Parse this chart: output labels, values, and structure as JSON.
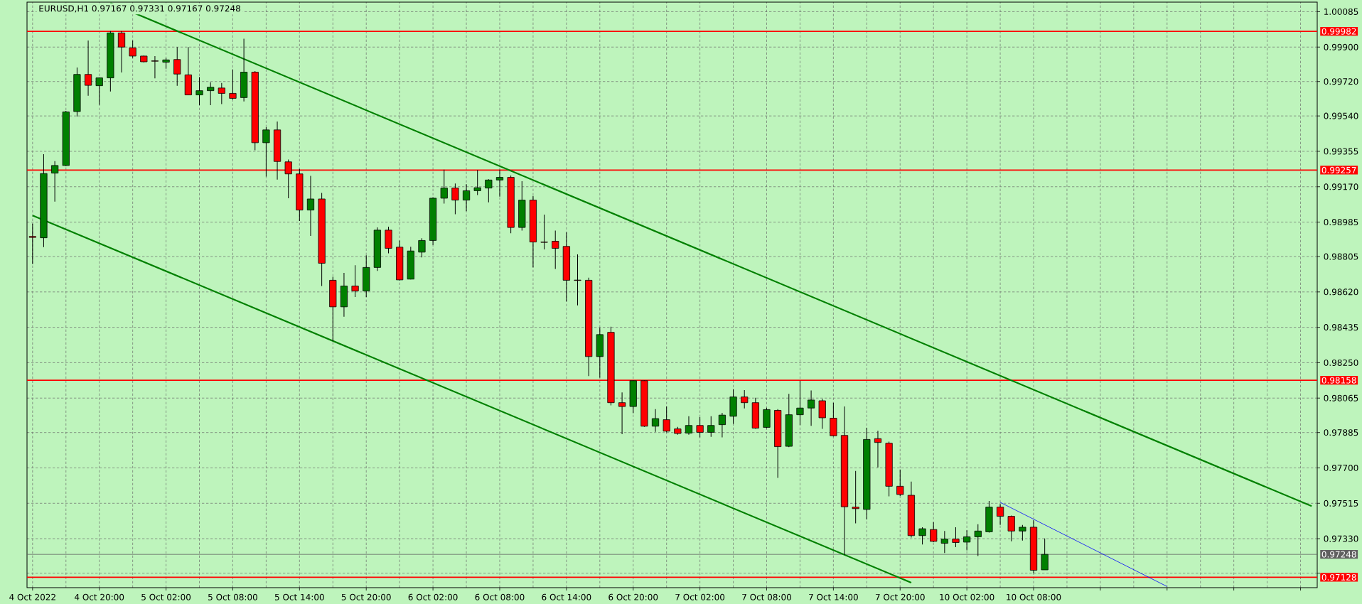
{
  "chart_data": {
    "type": "candlestick",
    "title": "EURUSD,H1  0.97167 0.97331 0.97167 0.97248",
    "categories": [
      "4 Oct 2022",
      null,
      null,
      null,
      null,
      null,
      "4 Oct 20:00",
      null,
      null,
      null,
      null,
      null,
      "5 Oct 02:00",
      null,
      null,
      null,
      null,
      null,
      "5 Oct 08:00",
      null,
      null,
      null,
      null,
      null,
      "5 Oct 14:00",
      null,
      null,
      null,
      null,
      null,
      "5 Oct 20:00",
      null,
      null,
      null,
      null,
      null,
      "6 Oct 02:00",
      null,
      null,
      null,
      null,
      null,
      "6 Oct 08:00",
      null,
      null,
      null,
      null,
      null,
      "6 Oct 14:00",
      null,
      null,
      null,
      null,
      null,
      "6 Oct 20:00",
      null,
      null,
      null,
      null,
      null,
      "7 Oct 02:00",
      null,
      null,
      null,
      null,
      null,
      "7 Oct 08:00",
      null,
      null,
      null,
      null,
      null,
      "7 Oct 14:00",
      null,
      null,
      null,
      null,
      null,
      "7 Oct 20:00",
      null,
      null,
      null,
      null,
      null,
      "10 Oct 02:00",
      null,
      null,
      null,
      null,
      null,
      "10 Oct 08:00",
      null,
      null,
      null,
      null,
      null,
      null,
      null,
      null,
      null,
      null,
      null,
      null,
      null,
      null,
      null,
      null,
      null,
      null,
      null,
      null,
      null,
      null,
      null,
      null,
      null
    ],
    "ohlc": [
      [
        0.9891,
        0.98977,
        0.98766,
        0.98905
      ],
      [
        0.98903,
        0.9934,
        0.98854,
        0.99239
      ],
      [
        0.99241,
        0.99304,
        0.99092,
        0.99281
      ],
      [
        0.99281,
        0.99567,
        0.99278,
        0.99561
      ],
      [
        0.99563,
        0.99793,
        0.99537,
        0.99757
      ],
      [
        0.99757,
        0.99934,
        0.99646,
        0.997
      ],
      [
        0.99698,
        0.99741,
        0.99598,
        0.99739
      ],
      [
        0.99739,
        0.99984,
        0.99668,
        0.99974
      ],
      [
        0.99974,
        0.99984,
        0.99767,
        0.999
      ],
      [
        0.99896,
        0.99934,
        0.99843,
        0.99853
      ],
      [
        0.99853,
        0.99855,
        0.9982,
        0.99823
      ],
      [
        0.99828,
        0.99853,
        0.99737,
        0.99826
      ],
      [
        0.99821,
        0.99843,
        0.99787,
        0.99833
      ],
      [
        0.99835,
        0.999,
        0.99698,
        0.99759
      ],
      [
        0.99755,
        0.999,
        0.99648,
        0.9965
      ],
      [
        0.9965,
        0.99743,
        0.99596,
        0.99672
      ],
      [
        0.99672,
        0.99716,
        0.99596,
        0.9969
      ],
      [
        0.99686,
        0.99712,
        0.99602,
        0.99658
      ],
      [
        0.99658,
        0.99783,
        0.99626,
        0.99632
      ],
      [
        0.99636,
        0.99944,
        0.99616,
        0.99769
      ],
      [
        0.99769,
        0.99775,
        0.9936,
        0.994
      ],
      [
        0.994,
        0.99481,
        0.99223,
        0.99467
      ],
      [
        0.99467,
        0.99511,
        0.99207,
        0.99302
      ],
      [
        0.993,
        0.99312,
        0.9911,
        0.99237
      ],
      [
        0.99237,
        0.99263,
        0.98991,
        0.99048
      ],
      [
        0.99048,
        0.99227,
        0.98913,
        0.99106
      ],
      [
        0.99106,
        0.99138,
        0.98651,
        0.9877
      ],
      [
        0.98681,
        0.98699,
        0.98363,
        0.98542
      ],
      [
        0.98542,
        0.9872,
        0.9849,
        0.98651
      ],
      [
        0.98651,
        0.9876,
        0.98593,
        0.98625
      ],
      [
        0.98625,
        0.98812,
        0.98593,
        0.98748
      ],
      [
        0.98748,
        0.98957,
        0.9873,
        0.98943
      ],
      [
        0.98943,
        0.98961,
        0.98822,
        0.98848
      ],
      [
        0.98854,
        0.98889,
        0.98681,
        0.98683
      ],
      [
        0.98687,
        0.98856,
        0.98685,
        0.98834
      ],
      [
        0.98828,
        0.98901,
        0.988,
        0.98889
      ],
      [
        0.98889,
        0.99114,
        0.98865,
        0.9911
      ],
      [
        0.9911,
        0.99259,
        0.99082,
        0.99163
      ],
      [
        0.99163,
        0.99187,
        0.99026,
        0.991
      ],
      [
        0.991,
        0.99183,
        0.99042,
        0.99149
      ],
      [
        0.99149,
        0.99257,
        0.99126,
        0.99165
      ],
      [
        0.99163,
        0.99209,
        0.99088,
        0.99205
      ],
      [
        0.99205,
        0.99259,
        0.99118,
        0.99219
      ],
      [
        0.99219,
        0.99229,
        0.98927,
        0.98957
      ],
      [
        0.98957,
        0.99199,
        0.98941,
        0.991
      ],
      [
        0.991,
        0.99122,
        0.98748,
        0.98881
      ],
      [
        0.98881,
        0.99024,
        0.98842,
        0.98879
      ],
      [
        0.98885,
        0.98941,
        0.9874,
        0.98848
      ],
      [
        0.98858,
        0.98931,
        0.9857,
        0.98681
      ],
      [
        0.98682,
        0.98816,
        0.9855,
        0.9868
      ],
      [
        0.98681,
        0.98695,
        0.9818,
        0.98282
      ],
      [
        0.98282,
        0.98434,
        0.98172,
        0.98397
      ],
      [
        0.98409,
        0.98438,
        0.98027,
        0.98041
      ],
      [
        0.98041,
        0.98095,
        0.97876,
        0.98021
      ],
      [
        0.98021,
        0.98158,
        0.97986,
        0.98156
      ],
      [
        0.98156,
        0.98158,
        0.97914,
        0.97918
      ],
      [
        0.97918,
        0.98007,
        0.97888,
        0.97958
      ],
      [
        0.97952,
        0.98021,
        0.97886,
        0.97892
      ],
      [
        0.97904,
        0.97914,
        0.97874,
        0.9788
      ],
      [
        0.97882,
        0.9797,
        0.97874,
        0.97922
      ],
      [
        0.97922,
        0.97966,
        0.9786,
        0.97886
      ],
      [
        0.97886,
        0.9797,
        0.97862,
        0.97922
      ],
      [
        0.97926,
        0.97988,
        0.9786,
        0.97976
      ],
      [
        0.9797,
        0.98111,
        0.9793,
        0.98071
      ],
      [
        0.98071,
        0.98107,
        0.98011,
        0.98041
      ],
      [
        0.98041,
        0.98067,
        0.97904,
        0.97908
      ],
      [
        0.97912,
        0.98015,
        0.97908,
        0.98005
      ],
      [
        0.98001,
        0.98007,
        0.97648,
        0.97811
      ],
      [
        0.97813,
        0.98087,
        0.97809,
        0.97978
      ],
      [
        0.97978,
        0.98156,
        0.97924,
        0.98013
      ],
      [
        0.98013,
        0.98105,
        0.9792,
        0.98055
      ],
      [
        0.98051,
        0.98061,
        0.97904,
        0.97962
      ],
      [
        0.9796,
        0.98041,
        0.97864,
        0.97868
      ],
      [
        0.9787,
        0.98021,
        0.97245,
        0.97497
      ],
      [
        0.97495,
        0.97684,
        0.9741,
        0.97487
      ],
      [
        0.97483,
        0.9791,
        0.97431,
        0.97849
      ],
      [
        0.97853,
        0.97894,
        0.97703,
        0.97833
      ],
      [
        0.97829,
        0.97837,
        0.97551,
        0.97604
      ],
      [
        0.97604,
        0.97692,
        0.97553,
        0.97561
      ],
      [
        0.97557,
        0.97628,
        0.97336,
        0.97346
      ],
      [
        0.97346,
        0.9739,
        0.973,
        0.97382
      ],
      [
        0.97378,
        0.97416,
        0.97312,
        0.97316
      ],
      [
        0.97306,
        0.9737,
        0.97255,
        0.97328
      ],
      [
        0.97328,
        0.9739,
        0.97286,
        0.9731
      ],
      [
        0.97312,
        0.97374,
        0.97269,
        0.9734
      ],
      [
        0.9734,
        0.97406,
        0.97239,
        0.9737
      ],
      [
        0.97366,
        0.97527,
        0.97362,
        0.97495
      ],
      [
        0.97495,
        0.97511,
        0.97402,
        0.97447
      ],
      [
        0.97447,
        0.97451,
        0.97316,
        0.9737
      ],
      [
        0.9737,
        0.97402,
        0.9732,
        0.9739
      ],
      [
        0.9739,
        0.97427,
        0.97149,
        0.97165
      ],
      [
        0.97167,
        0.97331,
        0.97167,
        0.97248
      ],
      null,
      null,
      null,
      null,
      null,
      null,
      null,
      null,
      null,
      null,
      null,
      null,
      null,
      null,
      null,
      null,
      null,
      null,
      null,
      null,
      null,
      null,
      null,
      null
    ],
    "colors": [
      "#ff0000",
      "#008000",
      "#008000",
      "#008000",
      "#008000",
      "#ff0000",
      "#008000",
      "#008000",
      "#ff0000",
      "#ff0000",
      "#ff0000",
      "#ff0000",
      "#008000",
      "#ff0000",
      "#ff0000",
      "#008000",
      "#008000",
      "#ff0000",
      "#ff0000",
      "#008000",
      "#ff0000",
      "#008000",
      "#ff0000",
      "#ff0000",
      "#ff0000",
      "#008000",
      "#ff0000",
      "#ff0000",
      "#008000",
      "#ff0000",
      "#008000",
      "#008000",
      "#ff0000",
      "#ff0000",
      "#008000",
      "#008000",
      "#008000",
      "#008000",
      "#ff0000",
      "#008000",
      "#008000",
      "#008000",
      "#008000",
      "#ff0000",
      "#008000",
      "#ff0000",
      "#ff0000",
      "#ff0000",
      "#ff0000",
      "#ff0000",
      "#ff0000",
      "#008000",
      "#ff0000",
      "#ff0000",
      "#008000",
      "#ff0000",
      "#008000",
      "#ff0000",
      "#ff0000",
      "#008000",
      "#ff0000",
      "#008000",
      "#008000",
      "#008000",
      "#ff0000",
      "#ff0000",
      "#008000",
      "#ff0000",
      "#008000",
      "#008000",
      "#008000",
      "#ff0000",
      "#ff0000",
      "#ff0000",
      "#ff0000",
      "#008000",
      "#ff0000",
      "#ff0000",
      "#ff0000",
      "#ff0000",
      "#008000",
      "#ff0000",
      "#008000",
      "#ff0000",
      "#008000",
      "#008000",
      "#008000",
      "#ff0000",
      "#ff0000",
      "#008000",
      "#ff0000",
      "#008000",
      null,
      null,
      null,
      null,
      null,
      null,
      null,
      null,
      null,
      null,
      null,
      null,
      null,
      null,
      null,
      null,
      null,
      null,
      null,
      null,
      null,
      null,
      null,
      null
    ],
    "series": [
      {
        "type": "line",
        "color": "#008000",
        "values": [
          null,
          null,
          null,
          null,
          null,
          null,
          null,
          1.0013,
          null,
          null,
          null,
          null,
          null,
          null,
          null,
          null,
          null,
          null,
          null,
          null,
          null,
          null,
          null,
          null,
          null,
          null,
          null,
          null,
          null,
          null,
          null,
          null,
          null,
          null,
          null,
          null,
          null,
          null,
          null,
          null,
          null,
          null,
          null,
          null,
          null,
          null,
          null,
          null,
          null,
          null,
          null,
          null,
          null,
          null,
          null,
          null,
          null,
          null,
          null,
          null,
          null,
          null,
          null,
          null,
          null,
          null,
          null,
          null,
          null,
          null,
          null,
          null,
          null,
          null,
          null,
          null,
          null,
          null,
          null,
          null,
          null,
          null,
          null,
          null,
          null,
          null,
          null,
          null,
          null,
          null,
          null,
          null,
          null,
          null,
          null,
          null,
          null,
          null,
          null,
          null,
          null,
          null,
          null,
          null,
          null,
          null,
          null,
          null,
          null,
          null,
          null,
          null,
          null,
          null,
          null,
          0.975
        ]
      },
      {
        "type": "line",
        "color": "#008000",
        "values": [
          0.9902,
          null,
          null,
          null,
          null,
          null,
          null,
          null,
          null,
          null,
          null,
          null,
          null,
          null,
          null,
          null,
          null,
          null,
          null,
          null,
          null,
          null,
          null,
          null,
          null,
          null,
          null,
          null,
          null,
          null,
          null,
          null,
          null,
          null,
          null,
          null,
          null,
          null,
          null,
          null,
          null,
          null,
          null,
          null,
          null,
          null,
          null,
          null,
          null,
          null,
          null,
          null,
          null,
          null,
          null,
          null,
          null,
          null,
          null,
          null,
          null,
          null,
          null,
          null,
          null,
          null,
          null,
          null,
          null,
          null,
          null,
          null,
          null,
          null,
          null,
          null,
          null,
          null,
          null,
          0.971,
          null,
          null,
          null,
          null,
          null,
          null,
          null,
          null,
          null,
          null,
          null,
          null,
          null,
          null,
          null,
          null,
          null,
          null,
          null,
          null,
          null,
          null,
          null,
          null,
          null,
          null,
          null,
          null,
          null,
          null,
          null,
          null,
          null,
          null,
          null,
          null
        ]
      },
      {
        "type": "line",
        "color": "#0000ff",
        "values": [
          null,
          null,
          null,
          null,
          null,
          null,
          null,
          null,
          null,
          null,
          null,
          null,
          null,
          null,
          null,
          null,
          null,
          null,
          null,
          null,
          null,
          null,
          null,
          null,
          null,
          null,
          null,
          null,
          null,
          null,
          null,
          null,
          null,
          null,
          null,
          null,
          null,
          null,
          null,
          null,
          null,
          null,
          null,
          null,
          null,
          null,
          null,
          null,
          null,
          null,
          null,
          null,
          null,
          null,
          null,
          null,
          null,
          null,
          null,
          null,
          null,
          null,
          null,
          null,
          null,
          null,
          null,
          null,
          null,
          null,
          null,
          null,
          null,
          null,
          null,
          null,
          null,
          null,
          null,
          null,
          null,
          null,
          null,
          null,
          null,
          null,
          null,
          0.9752,
          null,
          null,
          null,
          null,
          null,
          null,
          null,
          null,
          null,
          null,
          null,
          null,
          null,
          null,
          0.9708,
          null,
          null,
          null,
          null,
          null,
          null,
          null,
          null,
          null,
          null,
          null,
          null,
          null
        ]
      }
    ],
    "ylim": [
      0.97074,
      1.00135
    ],
    "yticks": [
      {
        "value": 0.9715,
        "label": null
      },
      {
        "value": 0.9733,
        "label": "0.97330"
      },
      {
        "value": 0.97515,
        "label": "0.97515"
      },
      {
        "value": 0.977,
        "label": "0.97700"
      },
      {
        "value": 0.97885,
        "label": "0.97885"
      },
      {
        "value": 0.98065,
        "label": "0.98065"
      },
      {
        "value": 0.9825,
        "label": "0.98250"
      },
      {
        "value": 0.98435,
        "label": "0.98435"
      },
      {
        "value": 0.9862,
        "label": "0.98620"
      },
      {
        "value": 0.98805,
        "label": "0.98805"
      },
      {
        "value": 0.98985,
        "label": "0.98985"
      },
      {
        "value": 0.9917,
        "label": "0.99170"
      },
      {
        "value": 0.99355,
        "label": "0.99355"
      },
      {
        "value": 0.9954,
        "label": "0.99540"
      },
      {
        "value": 0.9972,
        "label": "0.99720"
      },
      {
        "value": 0.999,
        "label": "0.99900"
      },
      {
        "value": 1.00085,
        "label": "1.00085"
      }
    ],
    "ref_lines": [
      {
        "axis": "y",
        "value": 0.99982,
        "label": "0.99982",
        "color": "#ff0000"
      },
      {
        "axis": "y",
        "value": 0.99257,
        "label": "0.99257",
        "color": "#ff0000"
      },
      {
        "axis": "y",
        "value": 0.98158,
        "label": "0.98158",
        "color": "#ff0000"
      },
      {
        "axis": "y",
        "value": 0.97128,
        "label": "0.97128",
        "color": "#ff0000"
      },
      {
        "axis": "y",
        "value": 0.97248,
        "label": "0.97248",
        "color": "#606060"
      }
    ],
    "grid": true
  }
}
